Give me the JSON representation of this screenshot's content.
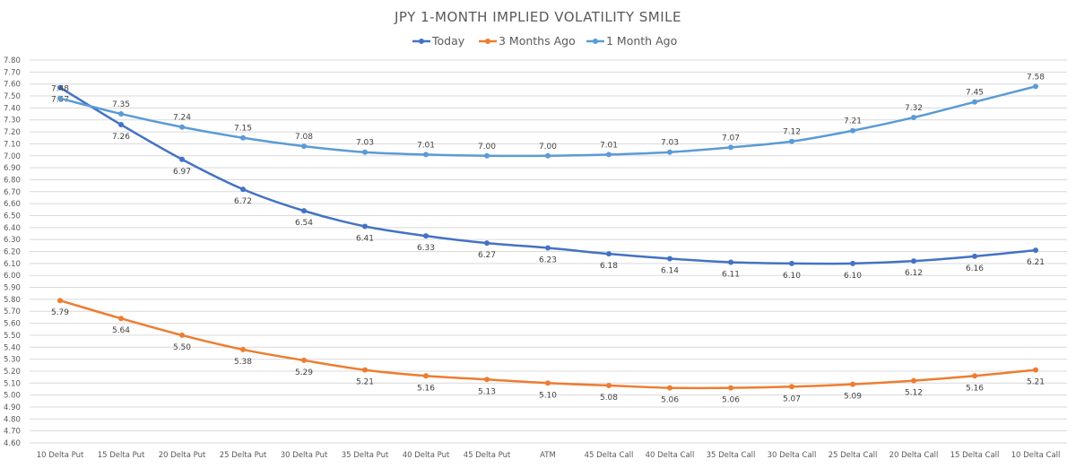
{
  "chart_data": {
    "type": "line",
    "title": "JPY 1-MONTH IMPLIED VOLATILITY SMILE",
    "categories": [
      "10 Delta Put",
      "15 Delta Put",
      "20 Delta Put",
      "25 Delta Put",
      "30 Delta Put",
      "35 Delta Put",
      "40 Delta Put",
      "45 Delta Put",
      "ATM",
      "45 Delta Call",
      "40 Delta Call",
      "35 Delta Call",
      "30 Delta Call",
      "25 Delta Call",
      "20 Delta Call",
      "15 Delta Call",
      "10 Delta Call"
    ],
    "series": [
      {
        "name": "Today",
        "color": "#4472C4",
        "values": [
          7.57,
          7.26,
          6.97,
          6.72,
          6.54,
          6.41,
          6.33,
          6.27,
          6.23,
          6.18,
          6.14,
          6.11,
          6.1,
          6.1,
          6.12,
          6.16,
          6.21
        ],
        "label_position": "below"
      },
      {
        "name": "3 Months Ago",
        "color": "#ED7D31",
        "values": [
          5.79,
          5.64,
          5.5,
          5.38,
          5.29,
          5.21,
          5.16,
          5.13,
          5.1,
          5.08,
          5.06,
          5.06,
          5.07,
          5.09,
          5.12,
          5.16,
          5.21
        ],
        "label_position": "below"
      },
      {
        "name": "1 Month Ago",
        "color": "#5B9BD5",
        "values": [
          7.48,
          7.35,
          7.24,
          7.15,
          7.08,
          7.03,
          7.01,
          7.0,
          7.0,
          7.01,
          7.03,
          7.07,
          7.12,
          7.21,
          7.32,
          7.45,
          7.58
        ],
        "label_position": "above"
      }
    ],
    "ylim": [
      4.6,
      7.8
    ],
    "ytick_step": 0.1,
    "grid": true,
    "legend_position": "top"
  }
}
